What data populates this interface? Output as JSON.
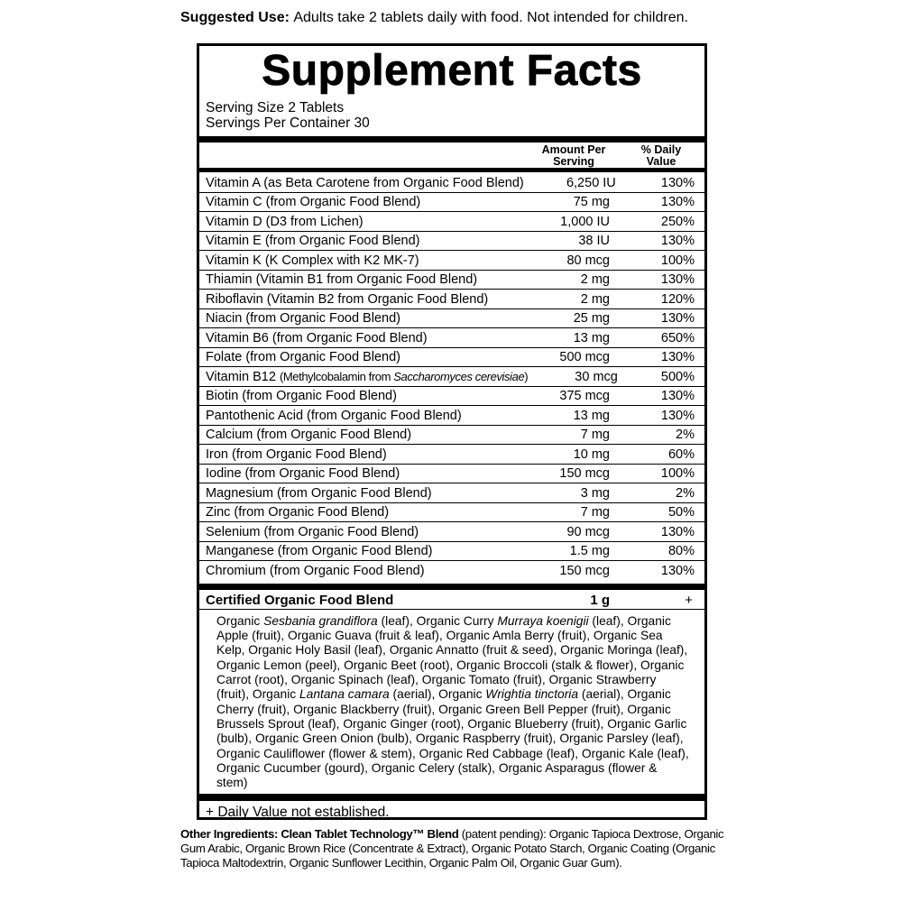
{
  "suggested_use": {
    "segments": [
      {
        "t": "Suggested Use: ",
        "c": "b"
      },
      {
        "t": "Adults take 2 tablets daily with food. Not intended for children."
      }
    ]
  },
  "panel": {
    "title": "Supplement Facts",
    "serving_size": "Serving Size 2 Tablets",
    "servings_per_container": "Servings Per Container 30",
    "columns": {
      "amount_header": "Amount Per Serving",
      "dv_header": "% Daily Value"
    },
    "rows": [
      {
        "name": [
          {
            "t": "Vitamin A (as Beta Carotene from Organic Food Blend)"
          }
        ],
        "amount": "6,250 IU",
        "dv": "130%"
      },
      {
        "name": [
          {
            "t": "Vitamin C (from Organic Food Blend)"
          }
        ],
        "amount": "75 mg",
        "dv": "130%"
      },
      {
        "name": [
          {
            "t": "Vitamin D (D3 from Lichen)"
          }
        ],
        "amount": "1,000 IU",
        "dv": "250%"
      },
      {
        "name": [
          {
            "t": "Vitamin E (from Organic Food Blend)"
          }
        ],
        "amount": "38 IU",
        "dv": "130%"
      },
      {
        "name": [
          {
            "t": "Vitamin K (K Complex with K2 MK-7)"
          }
        ],
        "amount": "80 mcg",
        "dv": "100%"
      },
      {
        "name": [
          {
            "t": "Thiamin (Vitamin B1 from Organic Food Blend)"
          }
        ],
        "amount": "2 mg",
        "dv": "130%"
      },
      {
        "name": [
          {
            "t": "Riboflavin (Vitamin B2 from Organic Food Blend)"
          }
        ],
        "amount": "2 mg",
        "dv": "120%"
      },
      {
        "name": [
          {
            "t": "Niacin (from Organic Food Blend)"
          }
        ],
        "amount": "25 mg",
        "dv": "130%"
      },
      {
        "name": [
          {
            "t": "Vitamin B6 (from Organic Food Blend)"
          }
        ],
        "amount": "13 mg",
        "dv": "650%"
      },
      {
        "name": [
          {
            "t": "Folate (from Organic Food Blend)"
          }
        ],
        "amount": "500 mcg",
        "dv": "130%"
      },
      {
        "name": [
          {
            "t": "Vitamin B12 "
          },
          {
            "t": "(Methylcobalamin from ",
            "c": "cond"
          },
          {
            "t": "Saccharomyces cerevisiae",
            "c": "cond i"
          },
          {
            "t": ")",
            "c": "cond"
          }
        ],
        "amount": "30 mcg",
        "dv": "500%"
      },
      {
        "name": [
          {
            "t": "Biotin (from Organic Food Blend)"
          }
        ],
        "amount": "375 mcg",
        "dv": "130%"
      },
      {
        "name": [
          {
            "t": "Pantothenic Acid (from Organic Food Blend)"
          }
        ],
        "amount": "13 mg",
        "dv": "130%"
      },
      {
        "name": [
          {
            "t": "Calcium (from Organic Food Blend)"
          }
        ],
        "amount": "7 mg",
        "dv": "2%"
      },
      {
        "name": [
          {
            "t": "Iron (from Organic Food Blend)"
          }
        ],
        "amount": "10 mg",
        "dv": "60%"
      },
      {
        "name": [
          {
            "t": "Iodine (from Organic Food Blend)"
          }
        ],
        "amount": "150 mcg",
        "dv": "100%"
      },
      {
        "name": [
          {
            "t": "Magnesium (from Organic Food Blend)"
          }
        ],
        "amount": "3 mg",
        "dv": "2%"
      },
      {
        "name": [
          {
            "t": "Zinc (from Organic Food Blend)"
          }
        ],
        "amount": "7 mg",
        "dv": "50%"
      },
      {
        "name": [
          {
            "t": "Selenium (from Organic Food Blend)"
          }
        ],
        "amount": "90 mcg",
        "dv": "130%"
      },
      {
        "name": [
          {
            "t": "Manganese (from Organic Food Blend)"
          }
        ],
        "amount": "1.5 mg",
        "dv": "80%"
      },
      {
        "name": [
          {
            "t": "Chromium (from Organic Food Blend)"
          }
        ],
        "amount": "150 mcg",
        "dv": "130%"
      }
    ],
    "blend_row": {
      "name": "Certified Organic Food Blend",
      "amount": "1 g",
      "dv": "+"
    },
    "blend_ingredients_segments": [
      {
        "t": "Organic "
      },
      {
        "t": "Sesbania grandiflora",
        "c": "i"
      },
      {
        "t": " (leaf), Organic Curry "
      },
      {
        "t": "Murraya koenigii",
        "c": "i"
      },
      {
        "t": " (leaf), Organic Apple (fruit), Organic Guava (fruit & leaf), Organic Amla Berry (fruit), Organic Sea Kelp, Organic Holy Basil (leaf), Organic Annatto (fruit & seed), Organic Moringa (leaf), Organic Lemon (peel), Organic Beet (root), Organic Broccoli (stalk & flower), Organic Carrot (root), Organic Spinach (leaf), Organic Tomato (fruit), Organic Strawberry (fruit), Organic "
      },
      {
        "t": "Lantana camara",
        "c": "i"
      },
      {
        "t": " (aerial), Organic "
      },
      {
        "t": "Wrightia tinctoria",
        "c": "i"
      },
      {
        "t": " (aerial), Organic Cherry (fruit), Organic Blackberry (fruit), Organic Green Bell Pepper (fruit), Organic Brussels Sprout (leaf), Organic Ginger (root), Organic Blueberry (fruit), Organic Garlic (bulb), Organic Green Onion (bulb), Organic Raspberry (fruit), Organic Parsley (leaf), Organic Cauliflower (flower & stem), Organic Red Cabbage (leaf), Organic Kale (leaf), Organic Cucumber (gourd), Organic Celery (stalk), Organic Asparagus (flower & stem)"
      }
    ],
    "footnote": "+ Daily Value not established."
  },
  "other_ingredients": {
    "segments": [
      {
        "t": "Other Ingredients: Clean Tablet Technology™ Blend ",
        "c": "b"
      },
      {
        "t": "(patent pending): Organic Tapioca Dextrose, Organic Gum Arabic, Organic Brown Rice (Concentrate & Extract), Organic Potato Starch, Organic Coating (Organic Tapioca Maltodextrin, Organic Sunflower Lecithin, Organic Palm Oil, Organic Guar Gum)."
      }
    ]
  }
}
